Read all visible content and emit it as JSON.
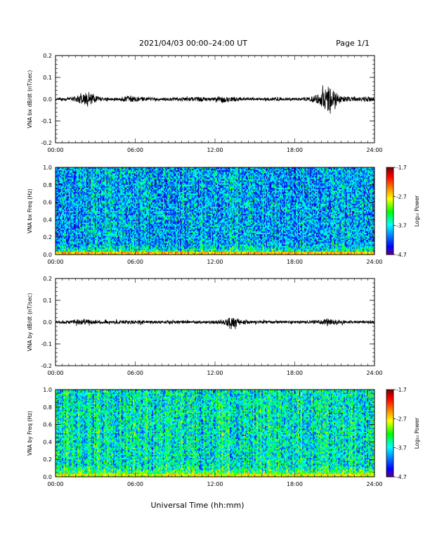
{
  "header": {
    "title": "2021/04/03  00:00–24:00 UT",
    "page": "Page 1/1"
  },
  "xlabel": "Universal Time (hh:mm)",
  "chart_data": [
    {
      "type": "line",
      "id": "bx",
      "ylabel": "VNA bx dB/dt (nT/sec)",
      "xlim": [
        0,
        24
      ],
      "ylim": [
        -0.2,
        0.2
      ],
      "xtick_labels": [
        "00:00",
        "06:00",
        "12:00",
        "18:00",
        "24:00"
      ],
      "ytick_labels": [
        "0.2",
        "0.1",
        "0.0",
        "-0.1",
        "-0.2"
      ],
      "ytick_values": [
        0.2,
        0.1,
        0.0,
        -0.1,
        -0.2
      ],
      "series": [
        {
          "color": "#000000",
          "envelope_x": [
            0,
            1,
            1.5,
            2.0,
            2.5,
            3.0,
            3.5,
            4.0,
            5.0,
            5.5,
            6.0,
            7.0,
            8.0,
            9.0,
            10.0,
            11.0,
            12.0,
            12.5,
            13.0,
            14.0,
            15.0,
            16.0,
            17.0,
            18.0,
            19.0,
            20.0,
            20.5,
            20.8,
            21.0,
            21.5,
            22.0,
            23.0,
            23.5,
            24.0
          ],
          "envelope_y": [
            0.01,
            0.015,
            0.02,
            0.04,
            0.065,
            0.03,
            0.015,
            0.01,
            0.02,
            0.025,
            0.02,
            0.015,
            0.01,
            0.015,
            0.015,
            0.02,
            0.015,
            0.035,
            0.02,
            0.015,
            0.01,
            0.015,
            0.015,
            0.01,
            0.015,
            0.05,
            0.12,
            0.09,
            0.06,
            0.03,
            0.02,
            0.015,
            0.025,
            0.015
          ]
        }
      ]
    },
    {
      "type": "heatmap",
      "id": "bx_spec",
      "ylabel": "VNA bx Freq (Hz)",
      "xlim": [
        0,
        24
      ],
      "ylim": [
        0,
        1.0
      ],
      "xtick_labels": [
        "00:00",
        "06:00",
        "12:00",
        "18:00",
        "24:00"
      ],
      "ytick_labels": [
        "1.0",
        "0.8",
        "0.6",
        "0.4",
        "0.2",
        "0.0"
      ],
      "ytick_values": [
        1.0,
        0.8,
        0.6,
        0.4,
        0.2,
        0.0
      ],
      "colorbar": {
        "label": "Log₁₀ Power",
        "range": [
          -4.7,
          -1.7
        ],
        "tick_labels": [
          "-1.7",
          "-2.7",
          "-3.7",
          "-4.7"
        ],
        "tick_values": [
          -1.7,
          -2.7,
          -3.7,
          -4.7
        ]
      },
      "level_typical": -3.9,
      "level_low_freq": -2.6
    },
    {
      "type": "line",
      "id": "by",
      "ylabel": "VNA by dB/dt (nT/sec)",
      "xlim": [
        0,
        24
      ],
      "ylim": [
        -0.2,
        0.2
      ],
      "xtick_labels": [
        "00:00",
        "06:00",
        "12:00",
        "18:00",
        "24:00"
      ],
      "ytick_labels": [
        "0.2",
        "0.1",
        "0.0",
        "-0.1",
        "-0.2"
      ],
      "ytick_values": [
        0.2,
        0.1,
        0.0,
        -0.1,
        -0.2
      ],
      "series": [
        {
          "color": "#000000",
          "envelope_x": [
            0,
            1,
            1.5,
            2.0,
            2.5,
            3.0,
            4.0,
            5.0,
            6.0,
            7.0,
            8.0,
            9.0,
            10.0,
            11.0,
            12.0,
            12.5,
            13.0,
            13.5,
            14.0,
            15.0,
            16.0,
            17.0,
            18.0,
            19.0,
            20.0,
            20.5,
            21.0,
            22.0,
            23.0,
            24.0
          ],
          "envelope_y": [
            0.01,
            0.012,
            0.02,
            0.025,
            0.02,
            0.015,
            0.012,
            0.015,
            0.015,
            0.012,
            0.012,
            0.012,
            0.012,
            0.012,
            0.015,
            0.015,
            0.035,
            0.045,
            0.02,
            0.012,
            0.012,
            0.012,
            0.012,
            0.012,
            0.02,
            0.03,
            0.02,
            0.012,
            0.012,
            0.01
          ]
        }
      ]
    },
    {
      "type": "heatmap",
      "id": "by_spec",
      "ylabel": "VNA by Freq (Hz)",
      "xlim": [
        0,
        24
      ],
      "ylim": [
        0,
        1.0
      ],
      "xtick_labels": [
        "00:00",
        "06:00",
        "12:00",
        "18:00",
        "24:00"
      ],
      "ytick_labels": [
        "1.0",
        "0.8",
        "0.6",
        "0.4",
        "0.2",
        "0.0"
      ],
      "ytick_values": [
        1.0,
        0.8,
        0.6,
        0.4,
        0.2,
        0.0
      ],
      "colorbar": {
        "label": "Log₁₀ Power",
        "range": [
          -4.7,
          -1.7
        ],
        "tick_labels": [
          "-1.7",
          "-2.7",
          "-3.7",
          "-4.7"
        ],
        "tick_values": [
          -1.7,
          -2.7,
          -3.7,
          -4.7
        ]
      },
      "level_typical": -3.6,
      "level_low_freq": -2.8
    }
  ]
}
